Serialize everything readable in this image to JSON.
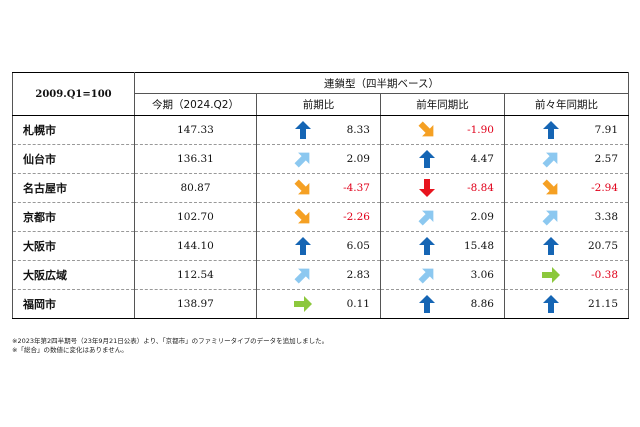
{
  "table": {
    "base_label": "2009.Q1=100",
    "group_label": "連鎖型（四半期ベース）",
    "columns": [
      "今期（2024.Q2）",
      "前期比",
      "前年同期比",
      "前々年同期比"
    ],
    "arrow_colors": {
      "up": "#1565b4",
      "up-right": "#8cc8f0",
      "right": "#8cc83c",
      "down-right": "#f5a023",
      "down": "#e8141e"
    },
    "rows": [
      {
        "city": "札幌市",
        "current": "147.33",
        "changes": [
          {
            "value": "8.33",
            "arrow": "up",
            "arrow_icon": "blue-up-arrow-icon",
            "negative": false
          },
          {
            "value": "-1.90",
            "arrow": "down-right",
            "arrow_icon": "orange-down-right-arrow-icon",
            "negative": true
          },
          {
            "value": "7.91",
            "arrow": "up",
            "arrow_icon": "blue-up-arrow-icon",
            "negative": false
          }
        ]
      },
      {
        "city": "仙台市",
        "current": "136.31",
        "changes": [
          {
            "value": "2.09",
            "arrow": "up-right",
            "arrow_icon": "light-blue-up-right-arrow-icon",
            "negative": false
          },
          {
            "value": "4.47",
            "arrow": "up",
            "arrow_icon": "blue-up-arrow-icon",
            "negative": false
          },
          {
            "value": "2.57",
            "arrow": "up-right",
            "arrow_icon": "light-blue-up-right-arrow-icon",
            "negative": false
          }
        ]
      },
      {
        "city": "名古屋市",
        "current": "80.87",
        "changes": [
          {
            "value": "-4.37",
            "arrow": "down-right",
            "arrow_icon": "orange-down-right-arrow-icon",
            "negative": true
          },
          {
            "value": "-8.84",
            "arrow": "down",
            "arrow_icon": "red-down-arrow-icon",
            "negative": true
          },
          {
            "value": "-2.94",
            "arrow": "down-right",
            "arrow_icon": "orange-down-right-arrow-icon",
            "negative": true
          }
        ]
      },
      {
        "city": "京都市",
        "current": "102.70",
        "changes": [
          {
            "value": "-2.26",
            "arrow": "down-right",
            "arrow_icon": "orange-down-right-arrow-icon",
            "negative": true
          },
          {
            "value": "2.09",
            "arrow": "up-right",
            "arrow_icon": "light-blue-up-right-arrow-icon",
            "negative": false
          },
          {
            "value": "3.38",
            "arrow": "up-right",
            "arrow_icon": "light-blue-up-right-arrow-icon",
            "negative": false
          }
        ]
      },
      {
        "city": "大阪市",
        "current": "144.10",
        "changes": [
          {
            "value": "6.05",
            "arrow": "up",
            "arrow_icon": "blue-up-arrow-icon",
            "negative": false
          },
          {
            "value": "15.48",
            "arrow": "up",
            "arrow_icon": "blue-up-arrow-icon",
            "negative": false
          },
          {
            "value": "20.75",
            "arrow": "up",
            "arrow_icon": "blue-up-arrow-icon",
            "negative": false
          }
        ]
      },
      {
        "city": "大阪広域",
        "current": "112.54",
        "changes": [
          {
            "value": "2.83",
            "arrow": "up-right",
            "arrow_icon": "light-blue-up-right-arrow-icon",
            "negative": false
          },
          {
            "value": "3.06",
            "arrow": "up-right",
            "arrow_icon": "light-blue-up-right-arrow-icon",
            "negative": false
          },
          {
            "value": "-0.38",
            "arrow": "right",
            "arrow_icon": "green-right-arrow-icon",
            "negative": true
          }
        ]
      },
      {
        "city": "福岡市",
        "current": "138.97",
        "changes": [
          {
            "value": "0.11",
            "arrow": "right",
            "arrow_icon": "green-right-arrow-icon",
            "negative": false
          },
          {
            "value": "8.86",
            "arrow": "up",
            "arrow_icon": "blue-up-arrow-icon",
            "negative": false
          },
          {
            "value": "21.15",
            "arrow": "up",
            "arrow_icon": "blue-up-arrow-icon",
            "negative": false
          }
        ]
      }
    ]
  },
  "notes": [
    "※2023年第2四半期号（23年9月21日公表）より、「京都市」のファミリータイプのデータを追加しました。",
    "※「総合」の数値に変化はありません。"
  ]
}
